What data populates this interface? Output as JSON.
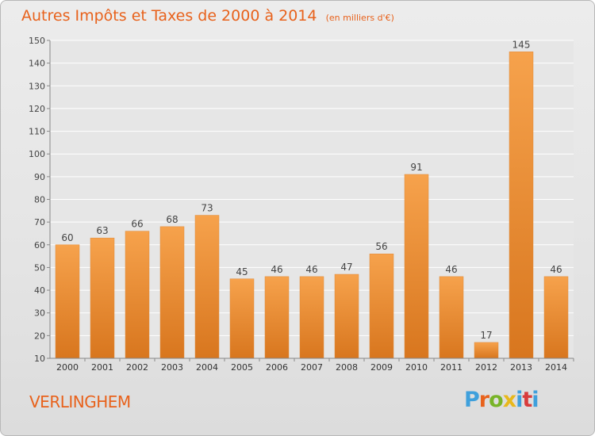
{
  "title": "Autres Impôts et Taxes de 2000 à 2014",
  "subtitle": "(en milliers d'€)",
  "location": "VERLINGHEM",
  "logo": {
    "text": "Proxiti",
    "colors": [
      "#3fa0dc",
      "#e8621c",
      "#78b428",
      "#e8b81c",
      "#3fa0dc",
      "#d83c3c"
    ]
  },
  "colors": {
    "title": "#e8621c",
    "bar_top": "#f6a24c",
    "bar_bottom": "#d8761e",
    "axis": "#888888",
    "grid": "#ffffff"
  },
  "chart_data": {
    "type": "bar",
    "categories": [
      "2000",
      "2001",
      "2002",
      "2003",
      "2004",
      "2005",
      "2006",
      "2007",
      "2008",
      "2009",
      "2010",
      "2011",
      "2012",
      "2013",
      "2014"
    ],
    "values": [
      60,
      63,
      66,
      68,
      73,
      45,
      46,
      46,
      47,
      56,
      91,
      46,
      17,
      145,
      46
    ],
    "ylim": [
      10,
      150
    ],
    "yticks": [
      10,
      20,
      30,
      40,
      50,
      60,
      70,
      80,
      90,
      100,
      110,
      120,
      130,
      140,
      150
    ],
    "grid": true,
    "data_labels": true
  }
}
